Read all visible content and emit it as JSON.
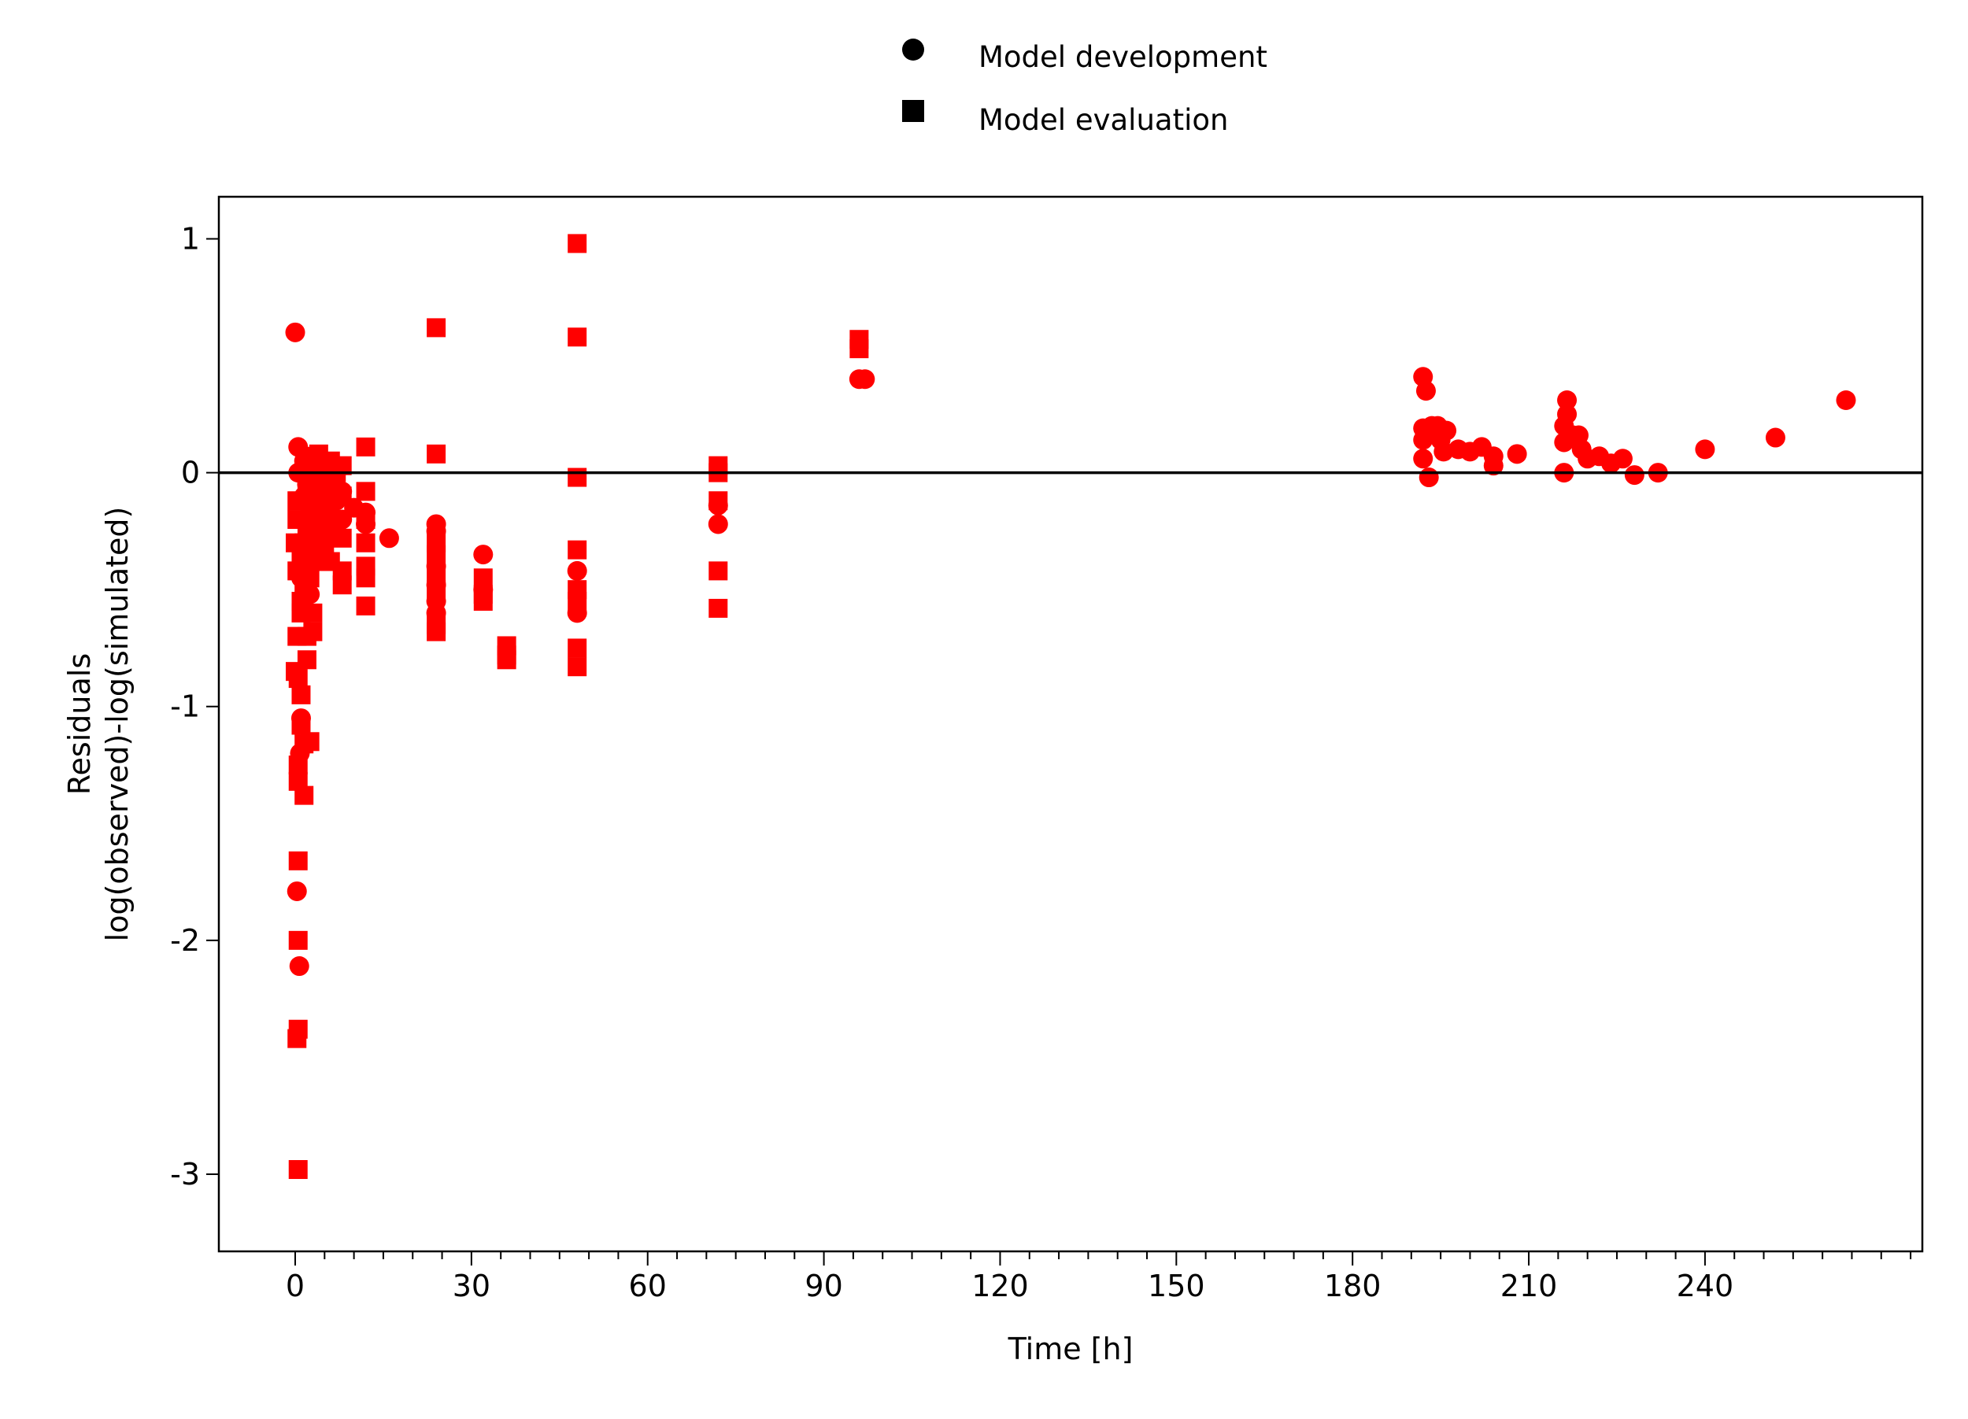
{
  "chart_data": {
    "type": "scatter",
    "xlabel": "Time [h]",
    "ylabel_lines": [
      "Residuals",
      "log(observed)-log(simulated)"
    ],
    "xlim": [
      -13,
      277
    ],
    "ylim": [
      -3.33,
      1.18
    ],
    "xticks": [
      0,
      30,
      60,
      90,
      120,
      150,
      180,
      210,
      240
    ],
    "x_minor_step": 5,
    "yticks": [
      -3,
      -2,
      -1,
      0,
      1
    ],
    "reference_line_y": 0,
    "grid": false,
    "legend_position": "top-center",
    "marker_color": "#ff0000",
    "legend_marker_color": "#000000",
    "series": [
      {
        "name": "Model development",
        "marker": "circle",
        "points": [
          [
            0,
            0.6
          ],
          [
            0.5,
            0.11
          ],
          [
            0.5,
            0
          ],
          [
            0.3,
            -0.86
          ],
          [
            0.3,
            -1.79
          ],
          [
            0.7,
            -2.11
          ],
          [
            0.8,
            -1.2
          ],
          [
            1,
            -1.05
          ],
          [
            1,
            -0.45
          ],
          [
            1.5,
            0.05
          ],
          [
            1.5,
            -0.1
          ],
          [
            2,
            -0.05
          ],
          [
            2,
            -0.3
          ],
          [
            2.5,
            -0.52
          ],
          [
            3,
            0.02
          ],
          [
            3,
            -0.15
          ],
          [
            3.5,
            -0.2
          ],
          [
            4,
            0.05
          ],
          [
            4,
            -0.1
          ],
          [
            5,
            -0.05
          ],
          [
            5,
            -0.25
          ],
          [
            6,
            -0.02
          ],
          [
            6,
            -0.18
          ],
          [
            7,
            -0.12
          ],
          [
            8,
            -0.08
          ],
          [
            8,
            -0.2
          ],
          [
            10,
            -0.15
          ],
          [
            12,
            -0.17
          ],
          [
            12,
            -0.22
          ],
          [
            16,
            -0.28
          ],
          [
            24,
            -0.22
          ],
          [
            24,
            -0.25
          ],
          [
            24,
            -0.4
          ],
          [
            24,
            -0.48
          ],
          [
            24,
            -0.55
          ],
          [
            24,
            -0.6
          ],
          [
            32,
            -0.35
          ],
          [
            32,
            -0.5
          ],
          [
            48,
            -0.42
          ],
          [
            48,
            -0.6
          ],
          [
            72,
            -0.14
          ],
          [
            72,
            -0.22
          ],
          [
            96,
            0.4
          ],
          [
            97,
            0.4
          ],
          [
            192,
            0.41
          ],
          [
            192.5,
            0.35
          ],
          [
            192,
            0.19
          ],
          [
            192,
            0.14
          ],
          [
            192,
            0.06
          ],
          [
            193,
            -0.02
          ],
          [
            193.5,
            0.2
          ],
          [
            194,
            0.17
          ],
          [
            194.5,
            0.2
          ],
          [
            195,
            0.14
          ],
          [
            195.5,
            0.09
          ],
          [
            196,
            0.18
          ],
          [
            198,
            0.1
          ],
          [
            200,
            0.09
          ],
          [
            202,
            0.11
          ],
          [
            204,
            0.07
          ],
          [
            204,
            0.03
          ],
          [
            208,
            0.08
          ],
          [
            216,
            0.2
          ],
          [
            216.5,
            0.31
          ],
          [
            216.5,
            0.25
          ],
          [
            216,
            0.13
          ],
          [
            216,
            0
          ],
          [
            217.5,
            0.16
          ],
          [
            218.5,
            0.16
          ],
          [
            219,
            0.1
          ],
          [
            220,
            0.06
          ],
          [
            222,
            0.07
          ],
          [
            224,
            0.04
          ],
          [
            226,
            0.06
          ],
          [
            228,
            -0.01
          ],
          [
            232,
            0
          ],
          [
            240,
            0.1
          ],
          [
            252,
            0.15
          ],
          [
            264,
            0.31
          ]
        ]
      },
      {
        "name": "Model evaluation",
        "marker": "square",
        "points": [
          [
            0,
            -0.3
          ],
          [
            0,
            -0.85
          ],
          [
            0.3,
            -0.12
          ],
          [
            0.3,
            -0.2
          ],
          [
            0.3,
            -0.42
          ],
          [
            0.3,
            -0.7
          ],
          [
            0.5,
            -0.88
          ],
          [
            0.5,
            -1.32
          ],
          [
            0.5,
            -1.25
          ],
          [
            0.5,
            -1.66
          ],
          [
            0.5,
            -2.0
          ],
          [
            0.5,
            -2.38
          ],
          [
            0.3,
            -2.42
          ],
          [
            0.5,
            -2.98
          ],
          [
            1,
            -0.38
          ],
          [
            1,
            -0.55
          ],
          [
            1,
            -0.6
          ],
          [
            1,
            -0.95
          ],
          [
            1,
            -1.08
          ],
          [
            1.5,
            -0.3
          ],
          [
            1.5,
            -0.5
          ],
          [
            1.5,
            -1.16
          ],
          [
            1.5,
            -1.38
          ],
          [
            2,
            -0.1
          ],
          [
            2,
            -0.25
          ],
          [
            2,
            -0.7
          ],
          [
            2,
            -0.8
          ],
          [
            2.5,
            0.02
          ],
          [
            2.5,
            -0.15
          ],
          [
            2.5,
            -0.45
          ],
          [
            2.5,
            -1.15
          ],
          [
            3,
            0.07
          ],
          [
            3,
            -0.05
          ],
          [
            3,
            -0.25
          ],
          [
            3,
            -0.38
          ],
          [
            3,
            -0.6
          ],
          [
            3,
            -0.68
          ],
          [
            4,
            0.08
          ],
          [
            4,
            -0.02
          ],
          [
            4,
            -0.18
          ],
          [
            4,
            -0.28
          ],
          [
            4,
            -0.35
          ],
          [
            5,
            0.02
          ],
          [
            5,
            -0.15
          ],
          [
            5,
            -0.3
          ],
          [
            6,
            0.05
          ],
          [
            6,
            -0.08
          ],
          [
            6,
            -0.2
          ],
          [
            6,
            -0.38
          ],
          [
            7,
            0
          ],
          [
            7,
            -0.25
          ],
          [
            8,
            0.03
          ],
          [
            8,
            -0.1
          ],
          [
            8,
            -0.28
          ],
          [
            8,
            -0.42
          ],
          [
            8,
            -0.48
          ],
          [
            12,
            0.11
          ],
          [
            12,
            -0.08
          ],
          [
            12,
            -0.2
          ],
          [
            12,
            -0.3
          ],
          [
            12,
            -0.4
          ],
          [
            12,
            -0.45
          ],
          [
            12,
            -0.57
          ],
          [
            24,
            0.62
          ],
          [
            24,
            0.08
          ],
          [
            24,
            -0.3
          ],
          [
            24,
            -0.35
          ],
          [
            24,
            -0.45
          ],
          [
            24,
            -0.5
          ],
          [
            24,
            -0.65
          ],
          [
            24,
            -0.68
          ],
          [
            32,
            -0.45
          ],
          [
            32,
            -0.52
          ],
          [
            32,
            -0.55
          ],
          [
            36,
            -0.74
          ],
          [
            36,
            -0.78
          ],
          [
            36,
            -0.8
          ],
          [
            48,
            0.98
          ],
          [
            48,
            0.58
          ],
          [
            48,
            -0.02
          ],
          [
            48,
            -0.33
          ],
          [
            48,
            -0.5
          ],
          [
            48,
            -0.55
          ],
          [
            48,
            -0.75
          ],
          [
            48,
            -0.83
          ],
          [
            72,
            0.03
          ],
          [
            72,
            0
          ],
          [
            72,
            -0.12
          ],
          [
            72,
            -0.42
          ],
          [
            72,
            -0.58
          ],
          [
            96,
            0.57
          ],
          [
            96,
            0.53
          ]
        ]
      }
    ]
  }
}
